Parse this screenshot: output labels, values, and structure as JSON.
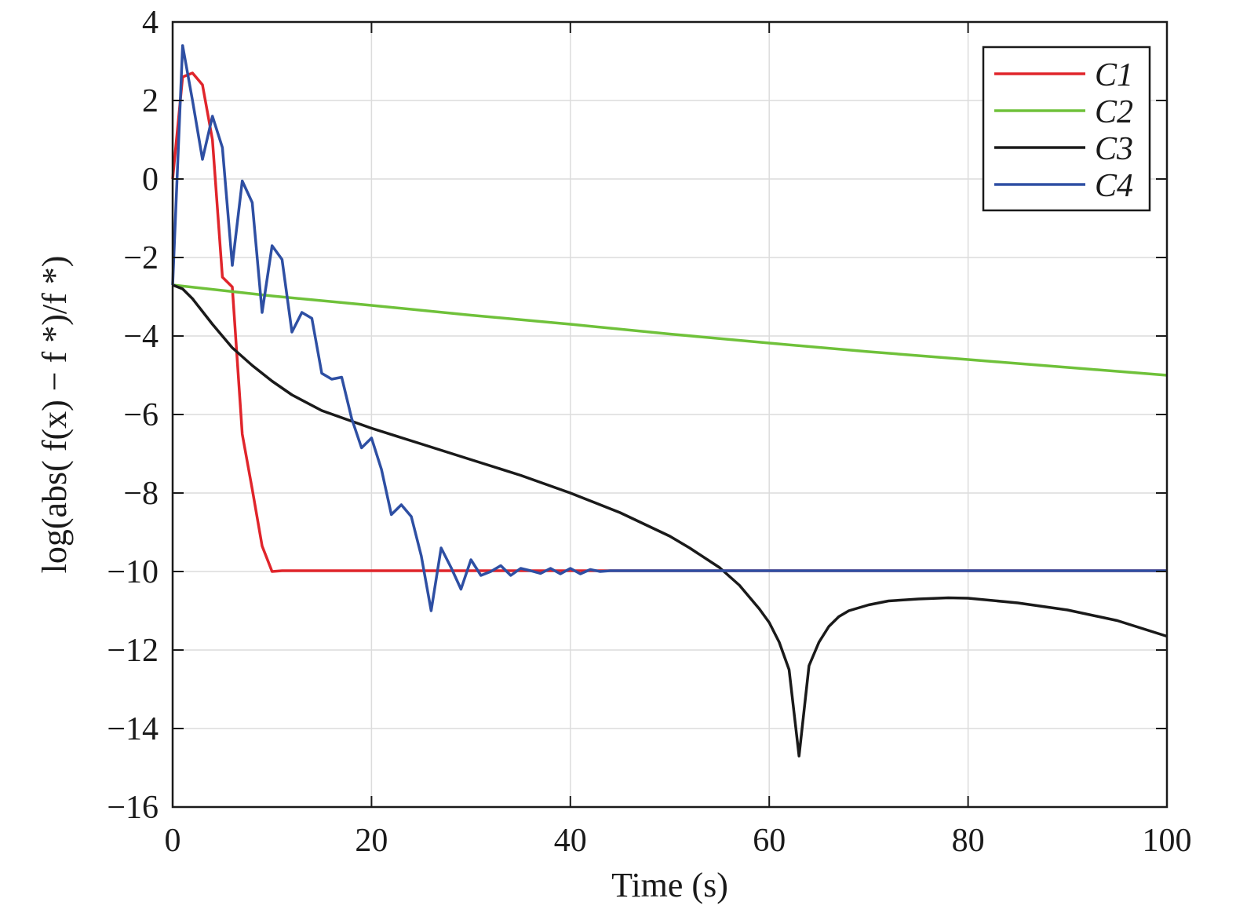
{
  "chart_data": {
    "type": "line",
    "xlabel": "Time (s)",
    "ylabel": "log(abs( f(x) − f *)/f *)",
    "xlim": [
      0,
      100
    ],
    "ylim": [
      -16,
      4
    ],
    "xticks": [
      0,
      20,
      40,
      60,
      80,
      100
    ],
    "yticks": [
      4,
      2,
      0,
      -2,
      -4,
      -6,
      -8,
      -10,
      -12,
      -14,
      -16
    ],
    "xtick_labels": [
      "0",
      "20",
      "40",
      "60",
      "80",
      "100"
    ],
    "ytick_labels": [
      "4",
      "2",
      "0",
      "−2",
      "−4",
      "−6",
      "−8",
      "−10",
      "−12",
      "−14",
      "−16"
    ],
    "grid": true,
    "legend_position": "top-right",
    "series": [
      {
        "name": "C1",
        "color": "#e0252b",
        "x": [
          0,
          1,
          2,
          3,
          4,
          5,
          6,
          7,
          8,
          9,
          10,
          11,
          20,
          30,
          40,
          50,
          60,
          70,
          80,
          90,
          100
        ],
        "y": [
          0.0,
          2.6,
          2.7,
          2.4,
          1.0,
          -2.5,
          -2.75,
          -6.5,
          -7.9,
          -9.35,
          -10.0,
          -9.98,
          -9.98,
          -9.98,
          -9.98,
          -9.98,
          -9.98,
          -9.98,
          -9.98,
          -9.98,
          -9.98
        ]
      },
      {
        "name": "C2",
        "color": "#6fc13a",
        "x": [
          0,
          10,
          20,
          30,
          40,
          50,
          60,
          70,
          80,
          90,
          100
        ],
        "y": [
          -2.7,
          -2.98,
          -3.22,
          -3.47,
          -3.7,
          -3.95,
          -4.18,
          -4.4,
          -4.6,
          -4.8,
          -5.0
        ]
      },
      {
        "name": "C3",
        "color": "#1a1a1a",
        "x": [
          0,
          1,
          2,
          4,
          6,
          8,
          10,
          12,
          15,
          20,
          25,
          30,
          35,
          40,
          45,
          50,
          52,
          55,
          57,
          59,
          60,
          61,
          62,
          63,
          64,
          65,
          66,
          67,
          68,
          70,
          72,
          75,
          78,
          80,
          85,
          90,
          95,
          100
        ],
        "y": [
          -2.7,
          -2.8,
          -3.05,
          -3.7,
          -4.3,
          -4.75,
          -5.15,
          -5.5,
          -5.9,
          -6.35,
          -6.75,
          -7.15,
          -7.55,
          -8.0,
          -8.5,
          -9.1,
          -9.4,
          -9.9,
          -10.35,
          -10.95,
          -11.3,
          -11.8,
          -12.5,
          -14.7,
          -12.4,
          -11.8,
          -11.4,
          -11.15,
          -11.0,
          -10.85,
          -10.75,
          -10.7,
          -10.67,
          -10.68,
          -10.8,
          -10.98,
          -11.25,
          -11.65
        ]
      },
      {
        "name": "C4",
        "color": "#2e4fa3",
        "x": [
          0,
          1,
          2,
          3,
          4,
          5,
          6,
          7,
          8,
          9,
          10,
          11,
          12,
          13,
          14,
          15,
          16,
          17,
          18,
          19,
          20,
          21,
          22,
          23,
          24,
          25,
          26,
          27,
          28,
          29,
          30,
          31,
          32,
          33,
          34,
          35,
          36,
          37,
          38,
          39,
          40,
          41,
          42,
          43,
          44,
          50,
          60,
          70,
          80,
          90,
          100
        ],
        "y": [
          -2.7,
          3.4,
          2.0,
          0.5,
          1.6,
          0.8,
          -2.2,
          -0.05,
          -0.6,
          -3.4,
          -1.7,
          -2.05,
          -3.9,
          -3.4,
          -3.55,
          -4.95,
          -5.1,
          -5.05,
          -6.1,
          -6.85,
          -6.6,
          -7.4,
          -8.55,
          -8.3,
          -8.6,
          -9.6,
          -11.0,
          -9.4,
          -9.9,
          -10.45,
          -9.7,
          -10.1,
          -10.0,
          -9.85,
          -10.1,
          -9.92,
          -9.98,
          -10.05,
          -9.92,
          -10.06,
          -9.92,
          -10.06,
          -9.95,
          -10.0,
          -9.98,
          -9.98,
          -9.98,
          -9.98,
          -9.98,
          -9.98,
          -9.98
        ]
      }
    ]
  }
}
